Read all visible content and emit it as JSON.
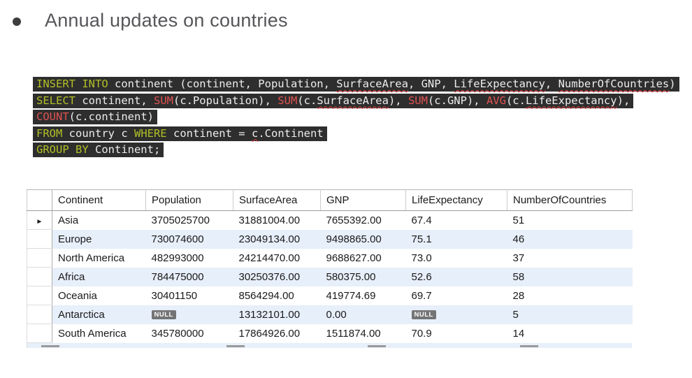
{
  "slide": {
    "title": "Annual updates on countries"
  },
  "sql_code": {
    "lines": [
      {
        "segments": [
          {
            "text": "INSERT INTO",
            "style": "keyword"
          },
          {
            "text": " continent (continent, Population, ",
            "style": "plain"
          },
          {
            "text": "SurfaceArea",
            "style": "plain",
            "squiggle": true
          },
          {
            "text": ", GNP, ",
            "style": "plain"
          },
          {
            "text": "LifeExpectancy",
            "style": "plain",
            "squiggle": true
          },
          {
            "text": ", ",
            "style": "plain"
          },
          {
            "text": "NumberOfCountries",
            "style": "plain",
            "squiggle": true
          },
          {
            "text": ")",
            "style": "plain"
          }
        ]
      },
      {
        "segments": [
          {
            "text": "SELECT",
            "style": "keyword"
          },
          {
            "text": " continent, ",
            "style": "plain"
          },
          {
            "text": "SUM",
            "style": "function"
          },
          {
            "text": "(c.Population), ",
            "style": "plain"
          },
          {
            "text": "SUM",
            "style": "function"
          },
          {
            "text": "(c.",
            "style": "plain"
          },
          {
            "text": "SurfaceArea",
            "style": "plain",
            "squiggle": true
          },
          {
            "text": "), ",
            "style": "plain"
          },
          {
            "text": "SUM",
            "style": "function"
          },
          {
            "text": "(c.GNP), ",
            "style": "plain"
          },
          {
            "text": "AVG",
            "style": "function"
          },
          {
            "text": "(c.",
            "style": "plain"
          },
          {
            "text": "LifeExpectancy",
            "style": "plain",
            "squiggle": true
          },
          {
            "text": "),",
            "style": "plain"
          }
        ]
      },
      {
        "segments": [
          {
            "text": "COUNT",
            "style": "function"
          },
          {
            "text": "(c.continent)",
            "style": "plain"
          }
        ]
      },
      {
        "segments": [
          {
            "text": "FROM",
            "style": "keyword"
          },
          {
            "text": " country c ",
            "style": "plain"
          },
          {
            "text": "WHERE",
            "style": "keyword"
          },
          {
            "text": " continent = ",
            "style": "plain"
          },
          {
            "text": "c",
            "style": "plain",
            "squiggle": true
          },
          {
            "text": ".Continent",
            "style": "plain"
          }
        ]
      },
      {
        "segments": [
          {
            "text": "GROUP BY",
            "style": "keyword"
          },
          {
            "text": " Continent;",
            "style": "plain"
          }
        ]
      }
    ]
  },
  "result_grid": {
    "columns": [
      "Continent",
      "Population",
      "SurfaceArea",
      "GNP",
      "LifeExpectancy",
      "NumberOfCountries"
    ],
    "rows": [
      [
        "Asia",
        "3705025700",
        "31881004.00",
        "7655392.00",
        "67.4",
        "51"
      ],
      [
        "Europe",
        "730074600",
        "23049134.00",
        "9498865.00",
        "75.1",
        "46"
      ],
      [
        "North America",
        "482993000",
        "24214470.00",
        "9688627.00",
        "73.0",
        "37"
      ],
      [
        "Africa",
        "784475000",
        "30250376.00",
        "580375.00",
        "52.6",
        "58"
      ],
      [
        "Oceania",
        "30401150",
        "8564294.00",
        "419774.69",
        "69.7",
        "28"
      ],
      [
        "Antarctica",
        null,
        "13132101.00",
        "0.00",
        null,
        "5"
      ],
      [
        "South America",
        "345780000",
        "17864926.00",
        "1511874.00",
        "70.9",
        "14"
      ]
    ],
    "null_label": "NULL",
    "row_marker": "►",
    "selected_row_index": 0
  },
  "colors": {
    "code_background": "#2e2e2e",
    "code_keyword": "#b2bf26",
    "code_function": "#e05151",
    "code_plain": "#ededed",
    "squiggle_red": "#e03c3c",
    "alt_row_blue": "#e7effa",
    "null_badge_gray": "#747474",
    "title_gray": "#56565a"
  }
}
